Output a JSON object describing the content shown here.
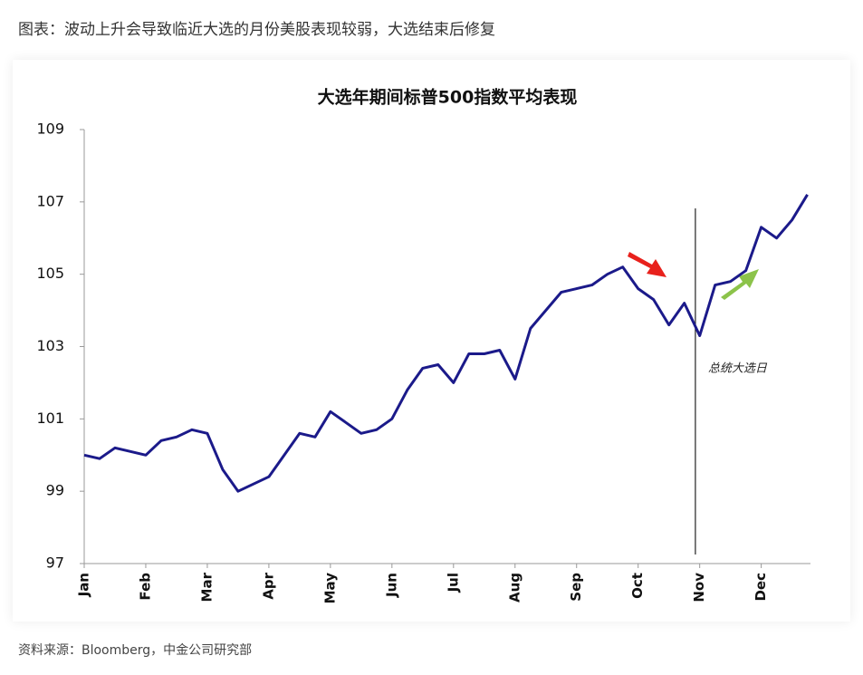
{
  "header": "图表：波动上升会导致临近大选的月份美股表现较弱，大选结束后修复",
  "footer": "资料来源：Bloomberg，中金公司研究部",
  "chart_data": {
    "type": "line",
    "title": "大选年期间标普500指数平均表现",
    "xlim": [
      0,
      11.8
    ],
    "xticks": [
      {
        "value": 0,
        "label": "Jan"
      },
      {
        "value": 1,
        "label": "Feb"
      },
      {
        "value": 2,
        "label": "Mar"
      },
      {
        "value": 3,
        "label": "Apr"
      },
      {
        "value": 4,
        "label": "May"
      },
      {
        "value": 5,
        "label": "Jun"
      },
      {
        "value": 6,
        "label": "Jul"
      },
      {
        "value": 7,
        "label": "Aug"
      },
      {
        "value": 8,
        "label": "Sep"
      },
      {
        "value": 9,
        "label": "Oct"
      },
      {
        "value": 10,
        "label": "Nov"
      },
      {
        "value": 11,
        "label": "Dec"
      }
    ],
    "ylim": [
      97,
      109
    ],
    "yticks": [
      97,
      99,
      101,
      103,
      105,
      107,
      109
    ],
    "x": [
      0,
      0.25,
      0.5,
      0.75,
      1,
      1.25,
      1.5,
      1.75,
      2,
      2.25,
      2.5,
      2.75,
      3,
      3.25,
      3.5,
      3.75,
      4,
      4.25,
      4.5,
      4.75,
      5,
      5.25,
      5.5,
      5.75,
      6,
      6.25,
      6.5,
      6.75,
      7,
      7.25,
      7.5,
      7.75,
      8,
      8.25,
      8.5,
      8.75,
      9,
      9.25,
      9.5,
      9.75,
      10,
      10.25,
      10.5,
      10.75,
      11,
      11.25,
      11.5,
      11.75
    ],
    "series": [
      {
        "color": "#1b1a8a",
        "values": [
          100.0,
          99.9,
          100.2,
          100.1,
          100.0,
          100.4,
          100.5,
          100.7,
          100.6,
          99.6,
          99.0,
          99.2,
          99.4,
          100.0,
          100.6,
          100.5,
          101.2,
          100.9,
          100.6,
          100.7,
          101.0,
          101.8,
          102.4,
          102.5,
          102.0,
          102.8,
          102.8,
          102.9,
          102.1,
          103.5,
          104.0,
          104.5,
          104.6,
          104.7,
          105.0,
          105.2,
          104.6,
          104.3,
          103.6,
          104.2,
          103.3,
          104.7,
          104.8,
          105.1,
          106.3,
          106.0,
          106.5,
          107.2
        ]
      }
    ],
    "annotations": [
      {
        "text": "总统大选日",
        "x": 9.93
      }
    ]
  }
}
